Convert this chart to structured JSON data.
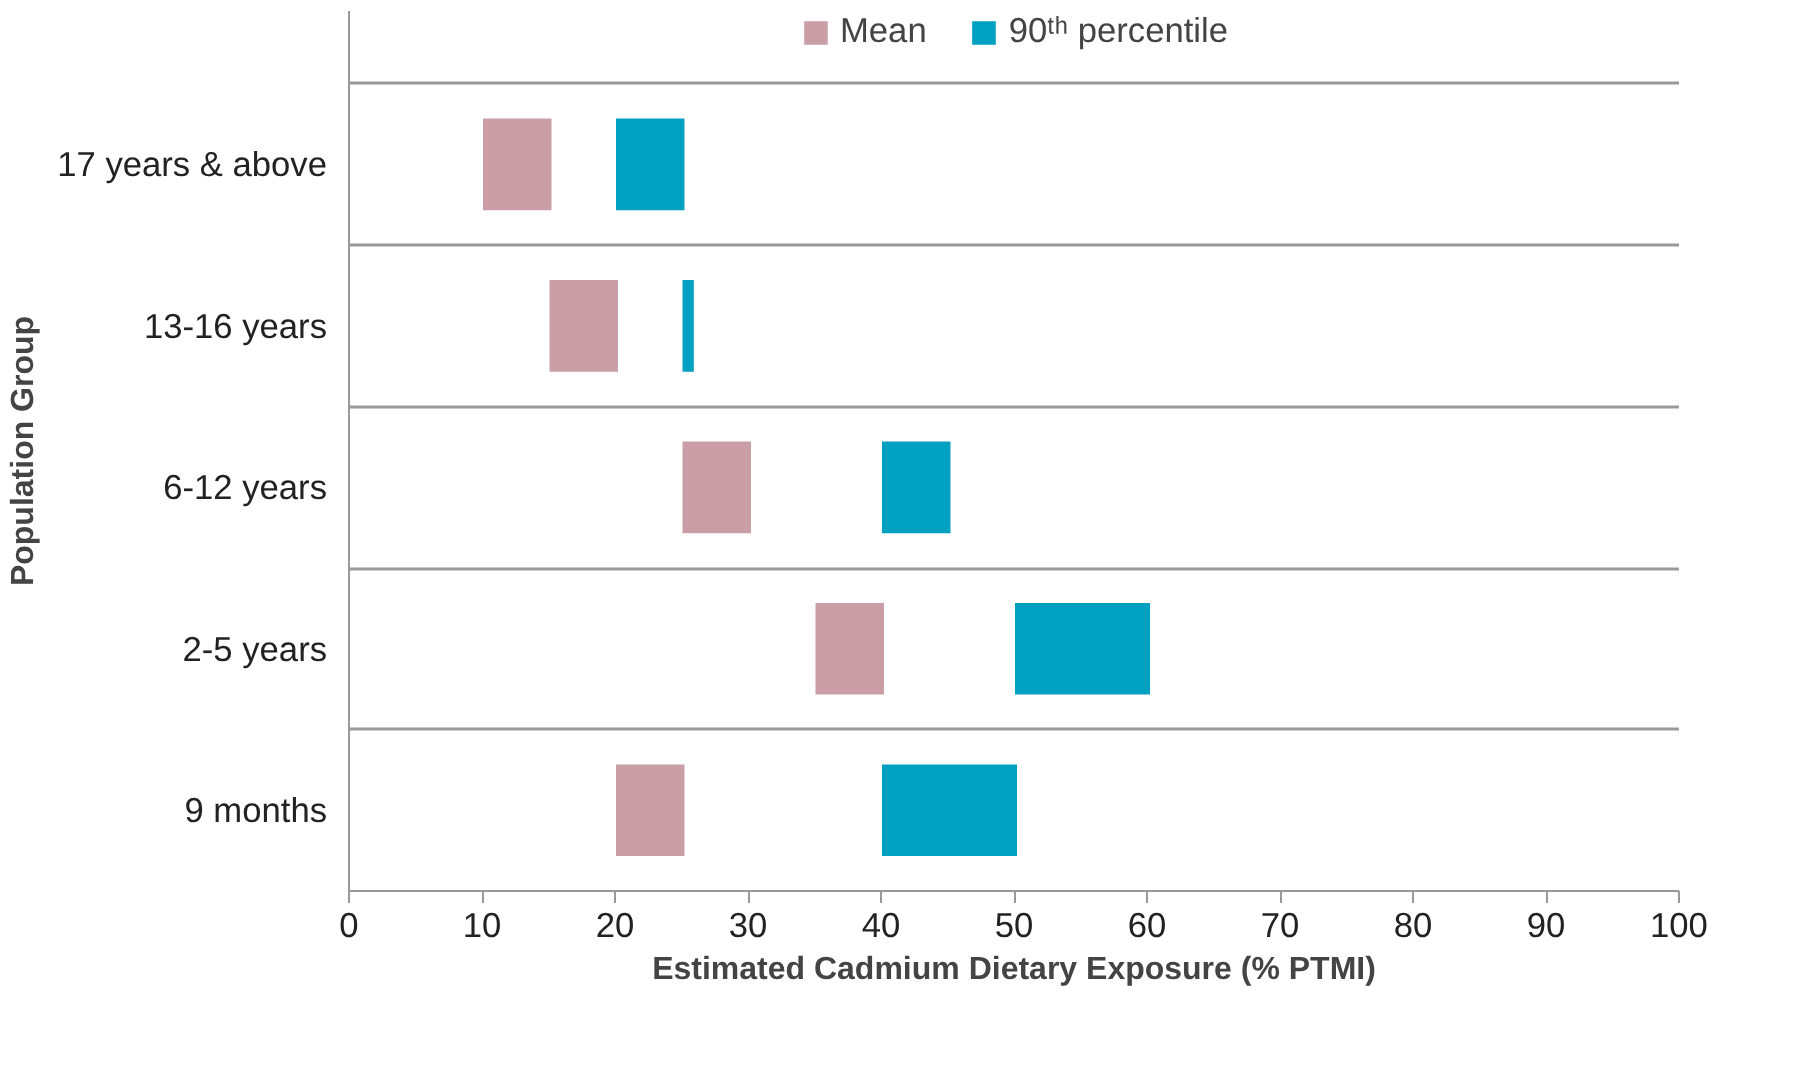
{
  "chart_data": {
    "type": "bar",
    "orientation": "horizontal",
    "xlabel": "Estimated Cadmium Dietary Exposure (% PTMI)",
    "ylabel": "Population Group",
    "categories": [
      "17 years & above",
      "13-16 years",
      "6-12 years",
      "2-5 years",
      "9 months"
    ],
    "series": [
      {
        "name": "Mean",
        "color": "#c99ea6",
        "base": [
          10,
          15,
          25,
          35,
          20
        ],
        "values": [
          5.3,
          5.3,
          5.3,
          5.3,
          5.3
        ]
      },
      {
        "name": "90ᵗʰ percentile",
        "color": "#00a0c1",
        "base": [
          20,
          25,
          40,
          50,
          40
        ],
        "values": [
          5.3,
          1,
          5.3,
          10.3,
          10.3
        ]
      }
    ],
    "xlim": [
      0,
      100
    ],
    "xticks": [
      0,
      10,
      20,
      30,
      40,
      50,
      60,
      70,
      80,
      90,
      100
    ],
    "grid": "y",
    "legend": "top"
  }
}
